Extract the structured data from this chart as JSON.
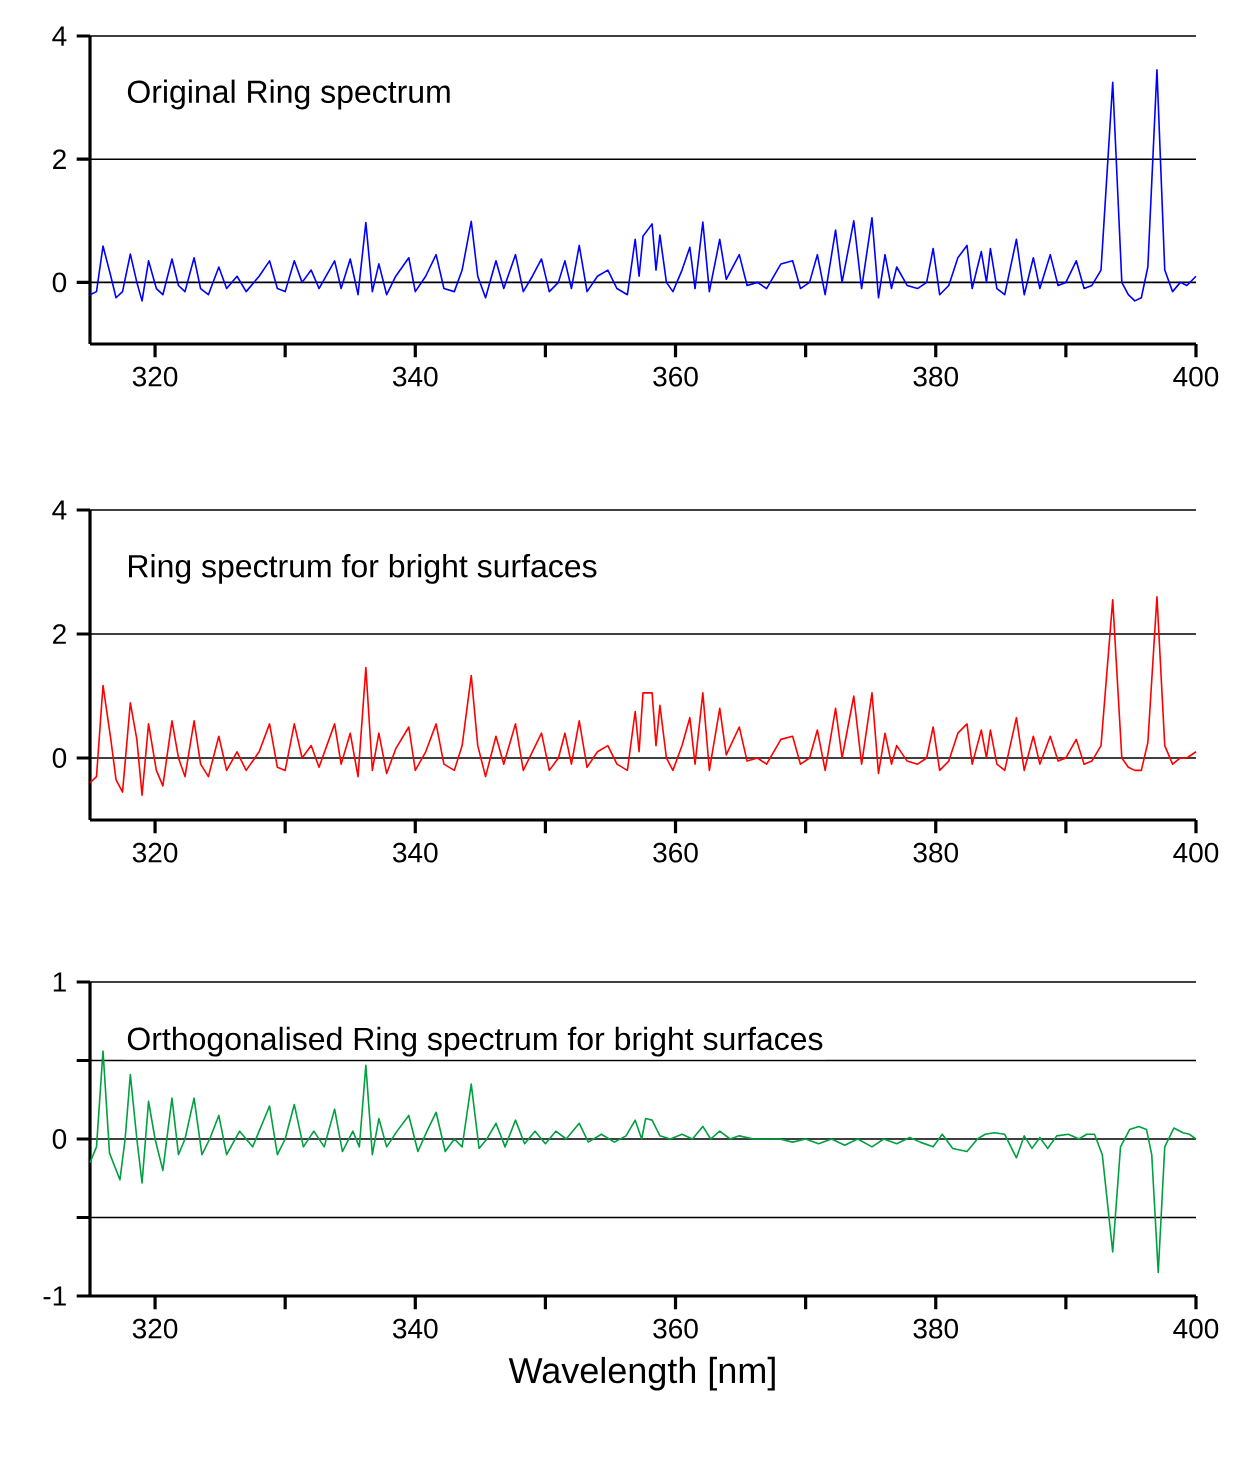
{
  "chart_data": [
    {
      "type": "line",
      "title": "Original Ring spectrum",
      "color": "#0000ff",
      "xlim": [
        315,
        400
      ],
      "ylim": [
        -1,
        4
      ],
      "grid": "y",
      "xticks": [
        {
          "value": 320,
          "label": "320"
        },
        {
          "value": 330,
          "label": null
        },
        {
          "value": 340,
          "label": "340"
        },
        {
          "value": 350,
          "label": null
        },
        {
          "value": 360,
          "label": "360"
        },
        {
          "value": 370,
          "label": null
        },
        {
          "value": 380,
          "label": "380"
        },
        {
          "value": 390,
          "label": null
        },
        {
          "value": 400,
          "label": "400"
        }
      ],
      "yticks": [
        0,
        2,
        4
      ],
      "x": [
        315.0,
        315.5,
        316.0,
        316.6,
        317.0,
        317.5,
        318.1,
        318.6,
        319.0,
        319.5,
        320.1,
        320.6,
        321.3,
        321.8,
        322.3,
        323.0,
        323.5,
        324.1,
        324.9,
        325.5,
        326.3,
        327.0,
        328.0,
        328.8,
        329.4,
        330.0,
        330.7,
        331.3,
        332.0,
        332.6,
        333.8,
        334.3,
        335.0,
        335.6,
        336.2,
        336.7,
        337.2,
        337.8,
        338.5,
        339.5,
        340.0,
        340.8,
        341.6,
        342.2,
        343.0,
        343.6,
        344.3,
        344.8,
        345.4,
        346.2,
        346.8,
        347.7,
        348.3,
        349.0,
        349.7,
        350.3,
        351.0,
        351.5,
        352.0,
        352.6,
        353.2,
        354.0,
        354.8,
        355.5,
        356.3,
        356.9,
        357.2,
        357.5,
        358.2,
        358.5,
        358.8,
        359.3,
        359.8,
        360.5,
        361.1,
        361.5,
        362.1,
        362.6,
        363.4,
        363.9,
        364.9,
        365.5,
        366.3,
        367.0,
        368.1,
        369.0,
        369.6,
        370.3,
        370.9,
        371.5,
        372.3,
        372.8,
        373.7,
        374.3,
        375.1,
        375.6,
        376.1,
        376.6,
        377.0,
        377.8,
        378.6,
        379.3,
        379.8,
        380.3,
        381.0,
        381.7,
        382.4,
        382.8,
        383.5,
        383.9,
        384.2,
        384.7,
        385.3,
        386.2,
        386.8,
        387.5,
        388.0,
        388.8,
        389.4,
        390.0,
        390.8,
        391.4,
        392.0,
        392.7,
        393.6,
        394.3,
        394.8,
        395.3,
        395.8,
        396.3,
        397.0,
        397.6,
        398.2,
        398.8,
        399.3,
        400.0
      ],
      "values": [
        -0.2,
        -0.15,
        0.59,
        0.1,
        -0.25,
        -0.15,
        0.46,
        0.0,
        -0.3,
        0.35,
        -0.1,
        -0.2,
        0.38,
        -0.05,
        -0.15,
        0.4,
        -0.1,
        -0.2,
        0.25,
        -0.1,
        0.1,
        -0.15,
        0.1,
        0.35,
        -0.1,
        -0.15,
        0.35,
        0.0,
        0.2,
        -0.1,
        0.35,
        -0.1,
        0.38,
        -0.2,
        0.97,
        -0.15,
        0.3,
        -0.2,
        0.1,
        0.4,
        -0.15,
        0.1,
        0.45,
        -0.1,
        -0.15,
        0.2,
        0.99,
        0.1,
        -0.25,
        0.35,
        -0.1,
        0.45,
        -0.15,
        0.1,
        0.38,
        -0.15,
        0.0,
        0.35,
        -0.1,
        0.6,
        -0.15,
        0.1,
        0.2,
        -0.1,
        -0.2,
        0.7,
        0.1,
        0.75,
        0.95,
        0.2,
        0.77,
        0.0,
        -0.15,
        0.2,
        0.57,
        -0.1,
        0.98,
        -0.15,
        0.7,
        0.05,
        0.45,
        -0.05,
        0.0,
        -0.1,
        0.3,
        0.35,
        -0.1,
        0.0,
        0.45,
        -0.2,
        0.85,
        0.0,
        1.0,
        -0.1,
        1.05,
        -0.25,
        0.45,
        -0.1,
        0.25,
        -0.05,
        -0.1,
        0.0,
        0.55,
        -0.2,
        -0.05,
        0.4,
        0.6,
        -0.1,
        0.5,
        0.0,
        0.55,
        -0.1,
        -0.2,
        0.7,
        -0.2,
        0.4,
        -0.1,
        0.45,
        -0.05,
        0.0,
        0.35,
        -0.1,
        -0.05,
        0.2,
        3.25,
        0.0,
        -0.2,
        -0.3,
        -0.25,
        0.25,
        3.45,
        0.2,
        -0.15,
        0.0,
        -0.05,
        0.1
      ]
    },
    {
      "type": "line",
      "title": "Ring spectrum for bright surfaces",
      "color": "#ff0000",
      "xlim": [
        315,
        400
      ],
      "ylim": [
        -1,
        4
      ],
      "grid": "y",
      "xticks": [
        {
          "value": 320,
          "label": "320"
        },
        {
          "value": 330,
          "label": null
        },
        {
          "value": 340,
          "label": "340"
        },
        {
          "value": 350,
          "label": null
        },
        {
          "value": 360,
          "label": "360"
        },
        {
          "value": 370,
          "label": null
        },
        {
          "value": 380,
          "label": "380"
        },
        {
          "value": 390,
          "label": null
        },
        {
          "value": 400,
          "label": "400"
        }
      ],
      "yticks": [
        0,
        2,
        4
      ],
      "x": [
        315.0,
        315.5,
        316.0,
        316.6,
        317.0,
        317.5,
        318.1,
        318.6,
        319.0,
        319.5,
        320.1,
        320.6,
        321.3,
        321.8,
        322.3,
        323.0,
        323.5,
        324.1,
        324.9,
        325.5,
        326.3,
        327.0,
        328.0,
        328.8,
        329.4,
        330.0,
        330.7,
        331.3,
        332.0,
        332.6,
        333.8,
        334.3,
        335.0,
        335.6,
        336.2,
        336.7,
        337.2,
        337.8,
        338.5,
        339.5,
        340.0,
        340.8,
        341.6,
        342.2,
        343.0,
        343.6,
        344.3,
        344.8,
        345.4,
        346.2,
        346.8,
        347.7,
        348.3,
        349.0,
        349.7,
        350.3,
        351.0,
        351.5,
        352.0,
        352.6,
        353.2,
        354.0,
        354.8,
        355.5,
        356.3,
        356.9,
        357.2,
        357.5,
        358.2,
        358.5,
        358.8,
        359.3,
        359.8,
        360.5,
        361.1,
        361.5,
        362.1,
        362.6,
        363.4,
        363.9,
        364.9,
        365.5,
        366.3,
        367.0,
        368.1,
        369.0,
        369.6,
        370.3,
        370.9,
        371.5,
        372.3,
        372.8,
        373.7,
        374.3,
        375.1,
        375.6,
        376.1,
        376.6,
        377.0,
        377.8,
        378.6,
        379.3,
        379.8,
        380.3,
        381.0,
        381.7,
        382.4,
        382.8,
        383.5,
        383.9,
        384.2,
        384.7,
        385.3,
        386.2,
        386.8,
        387.5,
        388.0,
        388.8,
        389.4,
        390.0,
        390.8,
        391.4,
        392.0,
        392.7,
        393.6,
        394.3,
        394.8,
        395.3,
        395.8,
        396.3,
        397.0,
        397.6,
        398.2,
        398.8,
        399.3,
        400.0
      ],
      "values": [
        -0.4,
        -0.3,
        1.17,
        0.3,
        -0.35,
        -0.55,
        0.89,
        0.3,
        -0.6,
        0.55,
        -0.2,
        -0.45,
        0.6,
        0.0,
        -0.3,
        0.6,
        -0.1,
        -0.3,
        0.35,
        -0.2,
        0.1,
        -0.2,
        0.1,
        0.55,
        -0.15,
        -0.2,
        0.55,
        0.0,
        0.2,
        -0.15,
        0.55,
        -0.1,
        0.4,
        -0.3,
        1.46,
        -0.2,
        0.4,
        -0.25,
        0.15,
        0.5,
        -0.2,
        0.1,
        0.55,
        -0.1,
        -0.2,
        0.2,
        1.33,
        0.2,
        -0.3,
        0.35,
        -0.1,
        0.55,
        -0.2,
        0.1,
        0.4,
        -0.2,
        0.0,
        0.4,
        -0.1,
        0.6,
        -0.15,
        0.1,
        0.2,
        -0.1,
        -0.2,
        0.75,
        0.1,
        1.05,
        1.05,
        0.2,
        0.85,
        0.0,
        -0.2,
        0.2,
        0.65,
        -0.1,
        1.05,
        -0.2,
        0.8,
        0.05,
        0.5,
        -0.05,
        0.0,
        -0.1,
        0.3,
        0.35,
        -0.1,
        0.0,
        0.45,
        -0.2,
        0.8,
        0.0,
        1.0,
        -0.1,
        1.05,
        -0.25,
        0.4,
        -0.1,
        0.2,
        -0.05,
        -0.1,
        0.0,
        0.5,
        -0.2,
        -0.05,
        0.4,
        0.55,
        -0.1,
        0.45,
        0.0,
        0.45,
        -0.1,
        -0.2,
        0.65,
        -0.2,
        0.35,
        -0.1,
        0.35,
        -0.05,
        0.0,
        0.3,
        -0.1,
        -0.05,
        0.2,
        2.55,
        0.0,
        -0.15,
        -0.2,
        -0.2,
        0.25,
        2.6,
        0.2,
        -0.1,
        0.0,
        0.0,
        0.1
      ]
    },
    {
      "type": "line",
      "title": "Orthogonalised Ring spectrum for bright surfaces",
      "xlabel": "Wavelength [nm]",
      "color": "#00a040",
      "xlim": [
        315,
        400
      ],
      "ylim": [
        -1,
        1
      ],
      "grid": "y",
      "xticks": [
        {
          "value": 320,
          "label": "320"
        },
        {
          "value": 330,
          "label": null
        },
        {
          "value": 340,
          "label": "340"
        },
        {
          "value": 350,
          "label": null
        },
        {
          "value": 360,
          "label": "360"
        },
        {
          "value": 370,
          "label": null
        },
        {
          "value": 380,
          "label": "380"
        },
        {
          "value": 390,
          "label": null
        },
        {
          "value": 400,
          "label": "400"
        }
      ],
      "yticks": [
        -1,
        {
          "value": -0.5,
          "label": null
        },
        0,
        {
          "value": 0.5,
          "label": null
        },
        1
      ],
      "x": [
        315.0,
        315.5,
        316.0,
        316.5,
        317.3,
        317.7,
        318.1,
        318.6,
        319.0,
        319.5,
        320.0,
        320.6,
        321.3,
        321.8,
        322.3,
        323.0,
        323.6,
        324.2,
        324.9,
        325.5,
        326.5,
        327.5,
        328.0,
        328.8,
        329.4,
        330.0,
        330.7,
        331.4,
        332.2,
        333.0,
        333.8,
        334.4,
        335.2,
        335.7,
        336.2,
        336.7,
        337.2,
        337.8,
        338.6,
        339.5,
        340.2,
        340.9,
        341.6,
        342.3,
        343.0,
        343.6,
        344.3,
        344.9,
        345.5,
        346.2,
        346.9,
        347.7,
        348.4,
        349.2,
        350.0,
        350.8,
        351.6,
        352.6,
        353.3,
        354.3,
        355.3,
        356.2,
        356.9,
        357.4,
        357.7,
        358.2,
        358.8,
        359.6,
        360.5,
        361.3,
        362.1,
        362.7,
        363.4,
        364.2,
        364.9,
        366.0,
        368.0,
        369.0,
        370.0,
        371.0,
        372.0,
        373.0,
        374.0,
        375.1,
        376.0,
        377.0,
        378.0,
        378.8,
        379.8,
        380.5,
        381.3,
        382.4,
        383.2,
        383.8,
        384.5,
        385.3,
        386.2,
        386.8,
        387.4,
        388.0,
        388.6,
        389.3,
        390.2,
        391.0,
        391.6,
        392.2,
        392.8,
        393.6,
        394.2,
        394.9,
        395.6,
        396.2,
        396.6,
        397.1,
        397.6,
        398.3,
        399.0,
        399.5,
        400.0
      ],
      "values": [
        -0.15,
        -0.05,
        0.56,
        -0.09,
        -0.26,
        0.0,
        0.41,
        0.0,
        -0.28,
        0.24,
        0.0,
        -0.2,
        0.26,
        -0.1,
        0.0,
        0.26,
        -0.1,
        0.0,
        0.15,
        -0.1,
        0.05,
        -0.05,
        0.05,
        0.21,
        -0.1,
        0.0,
        0.22,
        -0.05,
        0.05,
        -0.05,
        0.19,
        -0.08,
        0.05,
        -0.05,
        0.47,
        -0.1,
        0.13,
        -0.05,
        0.05,
        0.15,
        -0.08,
        0.05,
        0.17,
        -0.08,
        0.0,
        -0.05,
        0.35,
        -0.06,
        0.0,
        0.1,
        -0.05,
        0.12,
        -0.03,
        0.05,
        -0.03,
        0.05,
        0.0,
        0.1,
        -0.02,
        0.03,
        -0.02,
        0.02,
        0.12,
        0.0,
        0.13,
        0.12,
        0.02,
        0.0,
        0.03,
        0.0,
        0.08,
        0.0,
        0.05,
        0.0,
        0.02,
        0.0,
        0.0,
        -0.02,
        0.0,
        -0.03,
        0.0,
        -0.04,
        0.0,
        -0.05,
        0.0,
        -0.03,
        0.01,
        -0.02,
        -0.05,
        0.03,
        -0.06,
        -0.08,
        0.0,
        0.03,
        0.04,
        0.03,
        -0.12,
        0.02,
        -0.06,
        0.01,
        -0.06,
        0.02,
        0.03,
        0.0,
        0.03,
        0.03,
        -0.1,
        -0.72,
        -0.05,
        0.06,
        0.08,
        0.06,
        -0.1,
        -0.85,
        -0.05,
        0.07,
        0.04,
        0.03,
        0.0
      ]
    }
  ]
}
